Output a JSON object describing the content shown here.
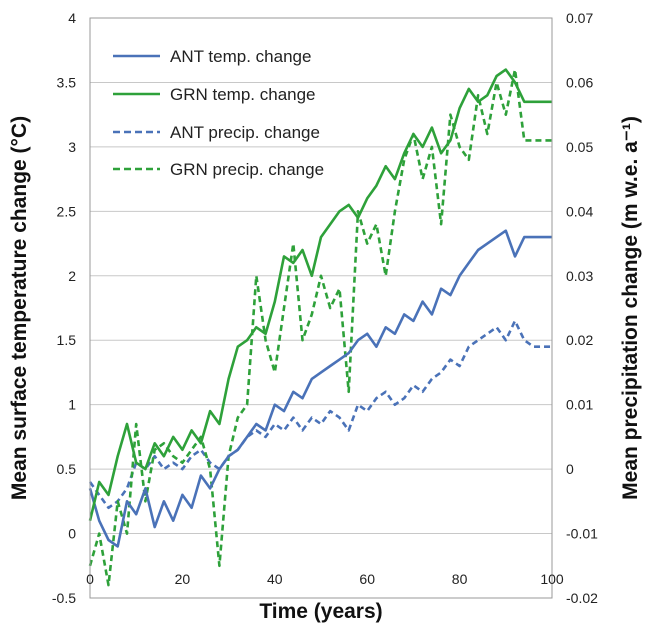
{
  "chart_data": {
    "type": "line",
    "xlabel": "Time (years)",
    "ylabel_left": "Mean surface temperature change (°C)",
    "ylabel_right": "Mean precipitation change (m w.e. a⁻¹)",
    "xlim": [
      0,
      100
    ],
    "ylim_left": [
      -0.5,
      4
    ],
    "ylim_right": [
      -0.02,
      0.07
    ],
    "x_ticks": [
      "0",
      "20",
      "40",
      "60",
      "80",
      "100"
    ],
    "y_left_ticks": [
      "-0.5",
      "0",
      "0.5",
      "1",
      "1.5",
      "2",
      "2.5",
      "3",
      "3.5",
      "4"
    ],
    "y_right_ticks": [
      "-0.02",
      "-0.01",
      "0",
      "0.01",
      "0.02",
      "0.03",
      "0.04",
      "0.05",
      "0.06",
      "0.07"
    ],
    "grid": "horizontal",
    "legend_position": "top-left",
    "colors": {
      "ant": "#4a72b8",
      "grn": "#2ea13a"
    },
    "series": [
      {
        "name": "ANT temp. change",
        "axis": "left",
        "style": "solid",
        "color": "#4a72b8",
        "x": [
          0,
          2,
          4,
          6,
          8,
          10,
          12,
          14,
          16,
          18,
          20,
          22,
          24,
          26,
          28,
          30,
          32,
          34,
          36,
          38,
          40,
          42,
          44,
          46,
          48,
          50,
          52,
          54,
          56,
          58,
          60,
          62,
          64,
          66,
          68,
          70,
          72,
          74,
          76,
          78,
          80,
          82,
          84,
          86,
          88,
          90,
          92,
          94,
          96,
          98,
          100
        ],
        "values": [
          0.35,
          0.1,
          -0.05,
          -0.1,
          0.25,
          0.15,
          0.35,
          0.05,
          0.25,
          0.1,
          0.3,
          0.2,
          0.45,
          0.35,
          0.5,
          0.6,
          0.65,
          0.75,
          0.85,
          0.8,
          1.0,
          0.95,
          1.1,
          1.05,
          1.2,
          1.25,
          1.3,
          1.35,
          1.4,
          1.5,
          1.55,
          1.45,
          1.6,
          1.55,
          1.7,
          1.65,
          1.8,
          1.7,
          1.9,
          1.85,
          2.0,
          2.1,
          2.2,
          2.25,
          2.3,
          2.35,
          2.15,
          2.3,
          2.3,
          2.3,
          2.3
        ]
      },
      {
        "name": "GRN temp. change",
        "axis": "left",
        "style": "solid",
        "color": "#2ea13a",
        "x": [
          0,
          2,
          4,
          6,
          8,
          10,
          12,
          14,
          16,
          18,
          20,
          22,
          24,
          26,
          28,
          30,
          32,
          34,
          36,
          38,
          40,
          42,
          44,
          46,
          48,
          50,
          52,
          54,
          56,
          58,
          60,
          62,
          64,
          66,
          68,
          70,
          72,
          74,
          76,
          78,
          80,
          82,
          84,
          86,
          88,
          90,
          92,
          94,
          96,
          98,
          100
        ],
        "values": [
          0.1,
          0.4,
          0.3,
          0.6,
          0.85,
          0.55,
          0.5,
          0.7,
          0.6,
          0.75,
          0.65,
          0.8,
          0.7,
          0.95,
          0.85,
          1.2,
          1.45,
          1.5,
          1.6,
          1.55,
          1.8,
          2.15,
          2.1,
          2.2,
          2.0,
          2.3,
          2.4,
          2.5,
          2.55,
          2.45,
          2.6,
          2.7,
          2.85,
          2.75,
          2.95,
          3.1,
          3.0,
          3.15,
          2.95,
          3.05,
          3.3,
          3.45,
          3.35,
          3.4,
          3.55,
          3.6,
          3.5,
          3.35,
          3.35,
          3.35,
          3.35
        ]
      },
      {
        "name": "ANT precip. change",
        "axis": "right",
        "style": "dashed",
        "color": "#4a72b8",
        "x": [
          0,
          2,
          4,
          6,
          8,
          10,
          12,
          14,
          16,
          18,
          20,
          22,
          24,
          26,
          28,
          30,
          32,
          34,
          36,
          38,
          40,
          42,
          44,
          46,
          48,
          50,
          52,
          54,
          56,
          58,
          60,
          62,
          64,
          66,
          68,
          70,
          72,
          74,
          76,
          78,
          80,
          82,
          84,
          86,
          88,
          90,
          92,
          94,
          96,
          98,
          100
        ],
        "values": [
          -0.002,
          -0.004,
          -0.006,
          -0.005,
          -0.003,
          0.001,
          0.0,
          0.002,
          0.0,
          0.001,
          0.0,
          0.002,
          0.003,
          0.001,
          0.0,
          0.002,
          0.003,
          0.005,
          0.006,
          0.005,
          0.007,
          0.006,
          0.008,
          0.006,
          0.008,
          0.007,
          0.009,
          0.008,
          0.006,
          0.01,
          0.009,
          0.011,
          0.012,
          0.01,
          0.011,
          0.013,
          0.012,
          0.014,
          0.015,
          0.017,
          0.016,
          0.019,
          0.02,
          0.021,
          0.022,
          0.02,
          0.023,
          0.02,
          0.019,
          0.019,
          0.019
        ]
      },
      {
        "name": "GRN precip. change",
        "axis": "right",
        "style": "dashed",
        "color": "#2ea13a",
        "x": [
          0,
          2,
          4,
          6,
          8,
          10,
          12,
          14,
          16,
          18,
          20,
          22,
          24,
          26,
          28,
          30,
          32,
          34,
          36,
          38,
          40,
          42,
          44,
          46,
          48,
          50,
          52,
          54,
          56,
          58,
          60,
          62,
          64,
          66,
          68,
          70,
          72,
          74,
          76,
          78,
          80,
          82,
          84,
          86,
          88,
          90,
          92,
          94,
          96,
          98,
          100
        ],
        "values": [
          -0.015,
          -0.01,
          -0.018,
          -0.005,
          -0.01,
          0.007,
          -0.005,
          0.003,
          0.004,
          0.002,
          0.001,
          0.003,
          0.005,
          0.0,
          -0.015,
          0.002,
          0.008,
          0.01,
          0.03,
          0.02,
          0.015,
          0.025,
          0.035,
          0.02,
          0.024,
          0.03,
          0.025,
          0.028,
          0.012,
          0.04,
          0.035,
          0.038,
          0.03,
          0.04,
          0.048,
          0.052,
          0.045,
          0.05,
          0.038,
          0.055,
          0.05,
          0.048,
          0.058,
          0.052,
          0.06,
          0.055,
          0.062,
          0.051,
          0.051,
          0.051,
          0.051
        ]
      }
    ]
  }
}
